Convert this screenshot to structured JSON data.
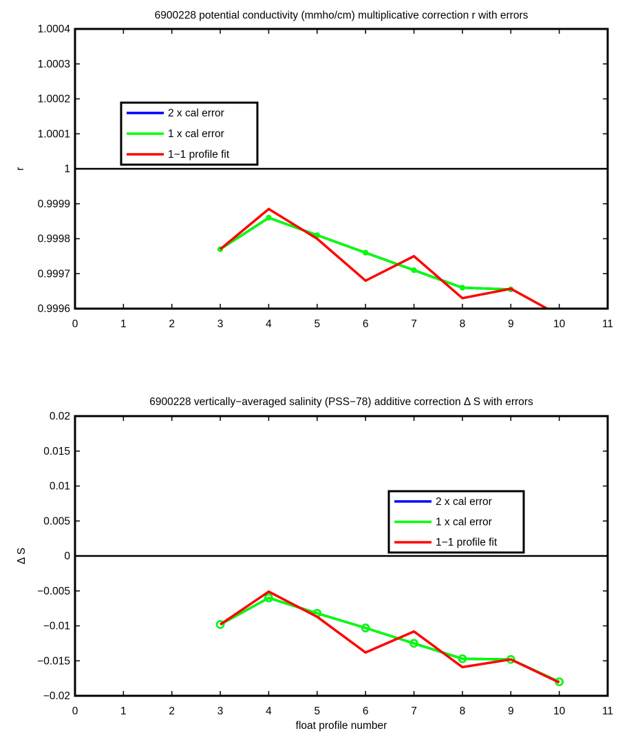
{
  "chart_data": [
    {
      "type": "line",
      "title": "6900228 potential conductivity (mmho/cm) multiplicative correction r with errors",
      "xlabel": "",
      "ylabel": "r",
      "xlim": [
        0,
        11
      ],
      "ylim": [
        0.9996,
        1.0004
      ],
      "xticks": [
        0,
        1,
        2,
        3,
        4,
        5,
        6,
        7,
        8,
        9,
        10,
        11
      ],
      "xtick_labels": [
        "0",
        "1",
        "2",
        "3",
        "4",
        "5",
        "6",
        "7",
        "8",
        "9",
        "10",
        "11"
      ],
      "yticks": [
        0.9996,
        0.9997,
        0.9998,
        0.9999,
        1,
        1.0001,
        1.0002,
        1.0003,
        1.0004
      ],
      "ytick_labels": [
        "0.9996",
        "0.9997",
        "0.9998",
        "0.9999",
        "1",
        "1.0001",
        "1.0002",
        "1.0003",
        "1.0004"
      ],
      "reference_line": 1,
      "grid": false,
      "legend_position": "upper-left",
      "marker_style": "dot",
      "series": [
        {
          "name": "2 x cal error",
          "color": "#0000ff",
          "x": [
            3,
            4,
            5,
            6,
            7,
            8,
            9
          ],
          "y": [
            0.99977,
            0.99986,
            0.99981,
            0.99976,
            0.99971,
            0.99966,
            0.999655
          ],
          "markers": true
        },
        {
          "name": "1 x cal error",
          "color": "#00ff00",
          "x": [
            3,
            4,
            5,
            6,
            7,
            8,
            9
          ],
          "y": [
            0.99977,
            0.99986,
            0.99981,
            0.99976,
            0.99971,
            0.99966,
            0.999655
          ],
          "markers": true
        },
        {
          "name": "1−1 profile fit",
          "color": "#ff0000",
          "x": [
            3,
            4,
            5,
            6,
            7,
            8,
            9,
            9.75
          ],
          "y": [
            0.99977,
            0.999885,
            0.9998,
            0.99968,
            0.99975,
            0.99963,
            0.999657,
            0.9996
          ],
          "markers": false
        }
      ]
    },
    {
      "type": "line",
      "title": "6900228 vertically−averaged salinity (PSS−78) additive correction Δ S with errors",
      "xlabel": "float profile number",
      "ylabel": "Δ S",
      "xlim": [
        0,
        11
      ],
      "ylim": [
        -0.02,
        0.02
      ],
      "xticks": [
        0,
        1,
        2,
        3,
        4,
        5,
        6,
        7,
        8,
        9,
        10,
        11
      ],
      "xtick_labels": [
        "0",
        "1",
        "2",
        "3",
        "4",
        "5",
        "6",
        "7",
        "8",
        "9",
        "10",
        "11"
      ],
      "yticks": [
        -0.02,
        -0.015,
        -0.01,
        -0.005,
        0,
        0.005,
        0.01,
        0.015,
        0.02
      ],
      "ytick_labels": [
        "−0.02",
        "−0.015",
        "−0.01",
        "−0.005",
        "0",
        "0.005",
        "0.01",
        "0.015",
        "0.02"
      ],
      "reference_line": 0,
      "grid": false,
      "legend_position": "right",
      "marker_style": "circle",
      "series": [
        {
          "name": "2 x cal error",
          "color": "#0000ff",
          "x": [
            3,
            4,
            5,
            6,
            7,
            8,
            9,
            10
          ],
          "y": [
            -0.0098,
            -0.006,
            -0.0082,
            -0.0103,
            -0.0125,
            -0.0147,
            -0.0148,
            -0.018
          ],
          "markers": true
        },
        {
          "name": "1 x cal error",
          "color": "#00ff00",
          "x": [
            3,
            4,
            5,
            6,
            7,
            8,
            9,
            10
          ],
          "y": [
            -0.0098,
            -0.006,
            -0.0082,
            -0.0103,
            -0.0125,
            -0.0147,
            -0.0148,
            -0.018
          ],
          "markers": true
        },
        {
          "name": "1−1 profile fit",
          "color": "#ff0000",
          "x": [
            3,
            4,
            5,
            6,
            7,
            8,
            9,
            10
          ],
          "y": [
            -0.0098,
            -0.0051,
            -0.0087,
            -0.0138,
            -0.0108,
            -0.0159,
            -0.0148,
            -0.0181
          ],
          "markers": false
        }
      ]
    }
  ]
}
